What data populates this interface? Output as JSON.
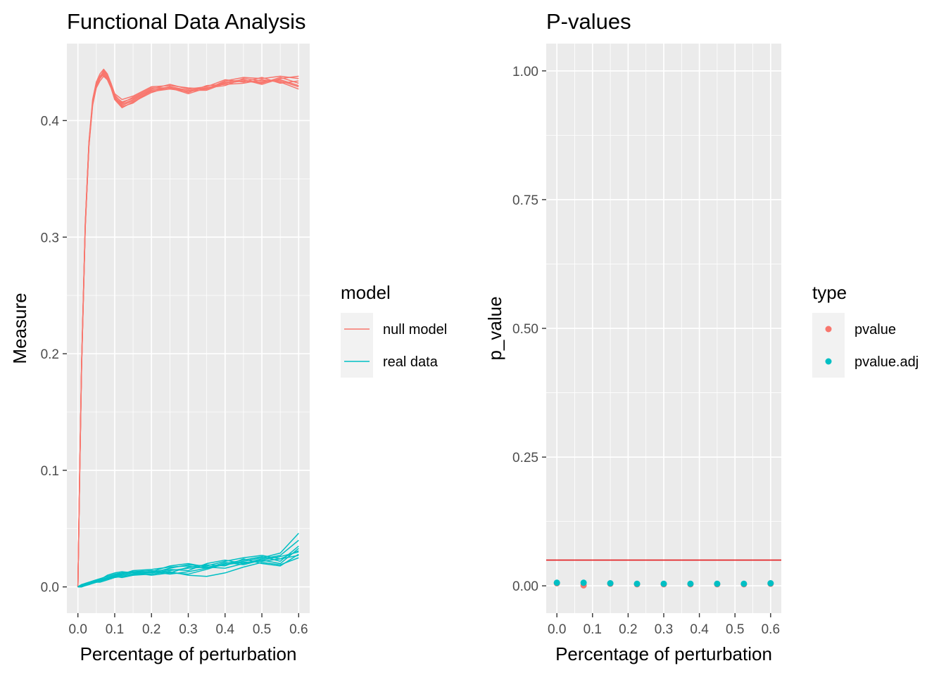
{
  "chart_data": [
    {
      "type": "line",
      "title": "Functional Data Analysis",
      "xlabel": "Percentage of perturbation",
      "ylabel": "Measure",
      "xlim": [
        -0.03,
        0.63
      ],
      "ylim": [
        -0.0225,
        0.466
      ],
      "x_ticks": [
        0.0,
        0.1,
        0.2,
        0.3,
        0.4,
        0.5,
        0.6
      ],
      "x_tick_labels": [
        "0.0",
        "0.1",
        "0.2",
        "0.3",
        "0.4",
        "0.5",
        "0.6"
      ],
      "y_ticks": [
        0.0,
        0.1,
        0.2,
        0.3,
        0.4
      ],
      "y_tick_labels": [
        "0.0",
        "0.1",
        "0.2",
        "0.3",
        "0.4"
      ],
      "grid": true,
      "legend": {
        "title": "model",
        "placement": "right",
        "entries": [
          {
            "label": "null model",
            "color": "#F8766D"
          },
          {
            "label": "real data",
            "color": "#00BFC4"
          }
        ]
      },
      "x": [
        0.0,
        0.005,
        0.01,
        0.02,
        0.03,
        0.04,
        0.05,
        0.06,
        0.07,
        0.08,
        0.09,
        0.1,
        0.12,
        0.15,
        0.2,
        0.25,
        0.3,
        0.35,
        0.4,
        0.45,
        0.5,
        0.55,
        0.6
      ],
      "series": [
        {
          "name": "null model",
          "color": "#F8766D",
          "values": [
            0.0,
            0.1,
            0.19,
            0.31,
            0.38,
            0.415,
            0.43,
            0.437,
            0.441,
            0.438,
            0.43,
            0.42,
            0.414,
            0.418,
            0.426,
            0.428,
            0.426,
            0.428,
            0.432,
            0.434,
            0.433,
            0.435,
            0.43
          ]
        },
        {
          "name": "null model",
          "color": "#F8766D",
          "values": [
            0.0,
            0.102,
            0.192,
            0.312,
            0.382,
            0.418,
            0.433,
            0.44,
            0.444,
            0.44,
            0.432,
            0.423,
            0.418,
            0.421,
            0.429,
            0.43,
            0.428,
            0.427,
            0.434,
            0.437,
            0.436,
            0.438,
            0.436
          ]
        },
        {
          "name": "null model",
          "color": "#F8766D",
          "values": [
            0.0,
            0.098,
            0.188,
            0.308,
            0.378,
            0.413,
            0.428,
            0.434,
            0.438,
            0.435,
            0.428,
            0.418,
            0.411,
            0.416,
            0.424,
            0.429,
            0.424,
            0.43,
            0.431,
            0.432,
            0.435,
            0.433,
            0.427
          ]
        },
        {
          "name": "null model",
          "color": "#F8766D",
          "values": [
            0.0,
            0.101,
            0.191,
            0.311,
            0.381,
            0.416,
            0.431,
            0.438,
            0.442,
            0.437,
            0.43,
            0.421,
            0.416,
            0.419,
            0.427,
            0.431,
            0.427,
            0.429,
            0.435,
            0.433,
            0.437,
            0.432,
            0.434
          ]
        },
        {
          "name": "null model",
          "color": "#F8766D",
          "values": [
            0.0,
            0.099,
            0.189,
            0.309,
            0.379,
            0.414,
            0.429,
            0.436,
            0.44,
            0.436,
            0.429,
            0.42,
            0.413,
            0.417,
            0.425,
            0.427,
            0.425,
            0.427,
            0.433,
            0.435,
            0.431,
            0.436,
            0.438
          ]
        },
        {
          "name": "null model",
          "color": "#F8766D",
          "values": [
            0.0,
            0.1,
            0.19,
            0.31,
            0.38,
            0.415,
            0.43,
            0.437,
            0.443,
            0.439,
            0.431,
            0.422,
            0.415,
            0.42,
            0.428,
            0.428,
            0.423,
            0.428,
            0.43,
            0.436,
            0.434,
            0.434,
            0.429
          ]
        },
        {
          "name": "null model",
          "color": "#F8766D",
          "values": [
            0.0,
            0.1,
            0.19,
            0.31,
            0.38,
            0.415,
            0.43,
            0.437,
            0.439,
            0.436,
            0.429,
            0.419,
            0.412,
            0.415,
            0.426,
            0.429,
            0.426,
            0.426,
            0.432,
            0.434,
            0.432,
            0.437,
            0.432
          ]
        },
        {
          "name": "real data",
          "color": "#00BFC4",
          "values": [
            0.0,
            0.0,
            0.001,
            0.002,
            0.003,
            0.004,
            0.005,
            0.006,
            0.007,
            0.007,
            0.008,
            0.009,
            0.01,
            0.011,
            0.012,
            0.014,
            0.016,
            0.017,
            0.019,
            0.021,
            0.022,
            0.024,
            0.027
          ]
        },
        {
          "name": "real data",
          "color": "#00BFC4",
          "values": [
            0.0,
            0.001,
            0.002,
            0.003,
            0.004,
            0.005,
            0.006,
            0.007,
            0.008,
            0.009,
            0.01,
            0.011,
            0.012,
            0.013,
            0.012,
            0.016,
            0.019,
            0.018,
            0.022,
            0.025,
            0.027,
            0.024,
            0.031
          ]
        },
        {
          "name": "real data",
          "color": "#00BFC4",
          "values": [
            0.0,
            0.0,
            0.0,
            0.001,
            0.002,
            0.003,
            0.004,
            0.005,
            0.006,
            0.008,
            0.009,
            0.01,
            0.012,
            0.013,
            0.014,
            0.012,
            0.011,
            0.015,
            0.02,
            0.023,
            0.026,
            0.022,
            0.035
          ]
        },
        {
          "name": "real data",
          "color": "#00BFC4",
          "values": [
            0.0,
            0.001,
            0.001,
            0.002,
            0.003,
            0.004,
            0.004,
            0.005,
            0.006,
            0.007,
            0.007,
            0.008,
            0.009,
            0.01,
            0.011,
            0.013,
            0.01,
            0.009,
            0.012,
            0.017,
            0.021,
            0.019,
            0.025
          ]
        },
        {
          "name": "real data",
          "color": "#00BFC4",
          "values": [
            0.0,
            0.0,
            0.001,
            0.003,
            0.004,
            0.005,
            0.006,
            0.007,
            0.008,
            0.01,
            0.011,
            0.012,
            0.013,
            0.012,
            0.013,
            0.018,
            0.02,
            0.017,
            0.016,
            0.02,
            0.024,
            0.027,
            0.04
          ]
        },
        {
          "name": "real data",
          "color": "#00BFC4",
          "values": [
            0.0,
            0.0,
            0.0,
            0.002,
            0.003,
            0.004,
            0.005,
            0.006,
            0.006,
            0.007,
            0.008,
            0.009,
            0.008,
            0.01,
            0.013,
            0.015,
            0.014,
            0.02,
            0.023,
            0.02,
            0.023,
            0.02,
            0.033
          ]
        },
        {
          "name": "real data",
          "color": "#00BFC4",
          "values": [
            0.0,
            0.001,
            0.002,
            0.002,
            0.003,
            0.003,
            0.004,
            0.005,
            0.006,
            0.007,
            0.009,
            0.01,
            0.011,
            0.012,
            0.01,
            0.012,
            0.017,
            0.019,
            0.018,
            0.024,
            0.02,
            0.018,
            0.028
          ]
        },
        {
          "name": "real data",
          "color": "#00BFC4",
          "values": [
            0.0,
            0.0,
            0.001,
            0.002,
            0.002,
            0.003,
            0.004,
            0.004,
            0.005,
            0.006,
            0.007,
            0.009,
            0.011,
            0.014,
            0.015,
            0.017,
            0.018,
            0.016,
            0.019,
            0.022,
            0.025,
            0.029,
            0.046
          ]
        },
        {
          "name": "real data",
          "color": "#00BFC4",
          "values": [
            0.0,
            0.001,
            0.001,
            0.002,
            0.003,
            0.004,
            0.005,
            0.006,
            0.007,
            0.008,
            0.008,
            0.009,
            0.01,
            0.011,
            0.013,
            0.011,
            0.013,
            0.016,
            0.021,
            0.019,
            0.023,
            0.026,
            0.03
          ]
        }
      ]
    },
    {
      "type": "scatter",
      "title": "P-values",
      "xlabel": "Percentage of perturbation",
      "ylabel": "p_value",
      "xlim": [
        -0.03,
        0.63
      ],
      "ylim": [
        -0.053,
        1.053
      ],
      "x_ticks": [
        0.0,
        0.1,
        0.2,
        0.3,
        0.4,
        0.5,
        0.6
      ],
      "x_tick_labels": [
        "0.0",
        "0.1",
        "0.2",
        "0.3",
        "0.4",
        "0.5",
        "0.6"
      ],
      "y_ticks": [
        0.0,
        0.25,
        0.5,
        0.75,
        1.0
      ],
      "y_tick_labels": [
        "0.00",
        "0.25",
        "0.50",
        "0.75",
        "1.00"
      ],
      "grid": true,
      "hline": {
        "y": 0.05,
        "color": "#E41A1C"
      },
      "legend": {
        "title": "type",
        "placement": "right",
        "entries": [
          {
            "label": "pvalue",
            "color": "#F8766D"
          },
          {
            "label": "pvalue.adj",
            "color": "#00BFC4"
          }
        ]
      },
      "series": [
        {
          "name": "pvalue",
          "color": "#F8766D",
          "x": [
            0.0,
            0.075,
            0.15,
            0.225,
            0.3,
            0.375,
            0.45,
            0.525,
            0.6
          ],
          "values": [
            0.005,
            0.001,
            0.004,
            0.003,
            0.003,
            0.003,
            0.003,
            0.003,
            0.004
          ]
        },
        {
          "name": "pvalue.adj",
          "color": "#00BFC4",
          "x": [
            0.0,
            0.075,
            0.15,
            0.225,
            0.3,
            0.375,
            0.45,
            0.525,
            0.6
          ],
          "values": [
            0.006,
            0.006,
            0.005,
            0.004,
            0.004,
            0.004,
            0.004,
            0.004,
            0.005
          ]
        }
      ]
    }
  ]
}
